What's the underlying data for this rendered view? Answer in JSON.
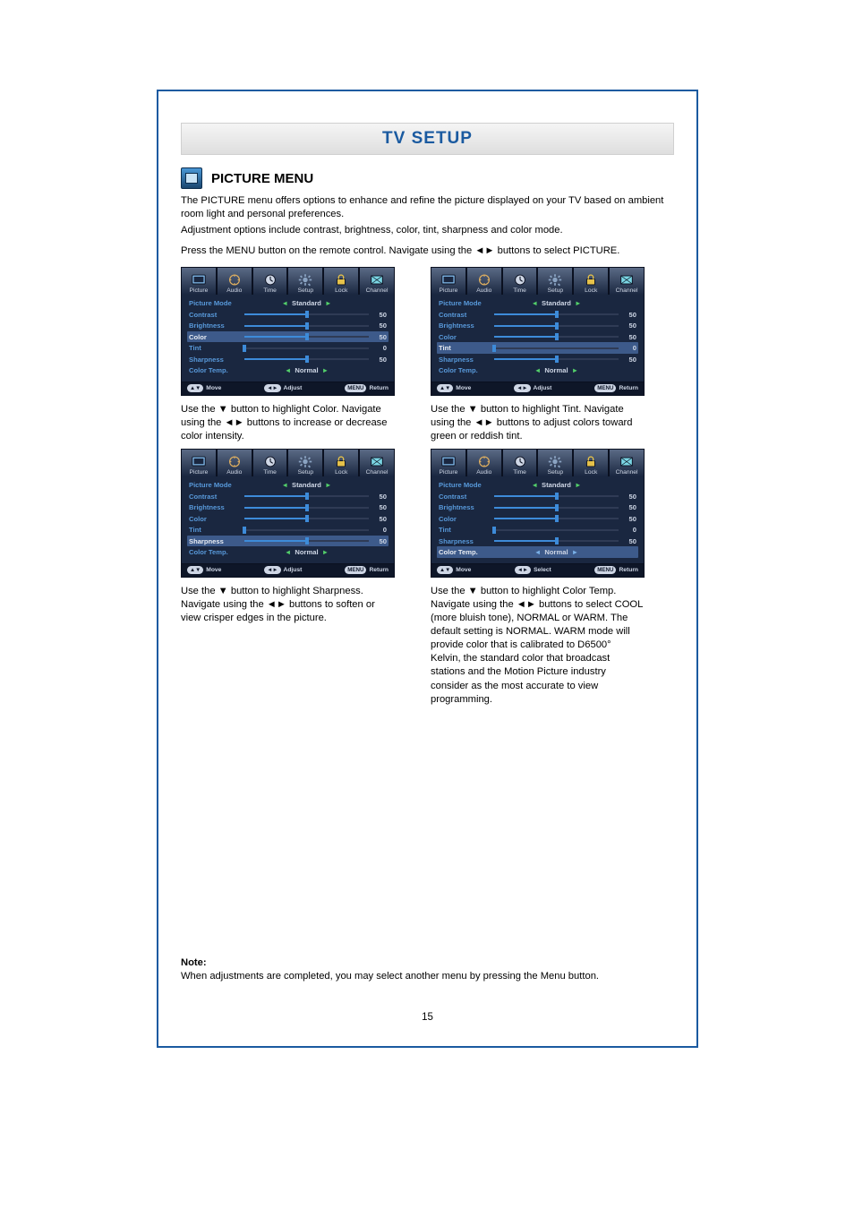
{
  "page_title": "TV SETUP",
  "section": {
    "heading": "PICTURE MENU",
    "intro_lines": [
      "The PICTURE menu offers options to enhance and refine the picture displayed on your TV based on ambient room light and personal preferences.",
      "Adjustment options include contrast, brightness, color, tint, sharpness and color mode.",
      "Press the MENU button on the remote control. Navigate using the ◄► buttons to select PICTURE."
    ]
  },
  "osd_common": {
    "tabs": [
      "Picture",
      "Audio",
      "Time",
      "Setup",
      "Lock",
      "Channel"
    ],
    "rows": [
      {
        "key": "Picture Mode",
        "type": "picker",
        "text": "Standard"
      },
      {
        "key": "Contrast",
        "type": "slider",
        "value": 50,
        "max": 100
      },
      {
        "key": "Brightness",
        "type": "slider",
        "value": 50,
        "max": 100
      },
      {
        "key": "Color",
        "type": "slider",
        "value": 50,
        "max": 100
      },
      {
        "key": "Tint",
        "type": "slider",
        "value": 0,
        "max": 100
      },
      {
        "key": "Sharpness",
        "type": "slider",
        "value": 50,
        "max": 100
      },
      {
        "key": "Color Temp.",
        "type": "picker",
        "text": "Normal"
      }
    ],
    "footer": {
      "move": "Move",
      "adjust": "Adjust",
      "select": "Select",
      "return": "Return",
      "menu_badge": "MENU",
      "lr_badge": "◄►",
      "ud_badge": "▲▼"
    }
  },
  "panels": [
    {
      "highlight_index": 3,
      "foot_center": "Adjust",
      "caption": "Use the ▼ button to highlight Color. Navigate using the ◄► buttons to increase or decrease color intensity."
    },
    {
      "highlight_index": 4,
      "foot_center": "Adjust",
      "caption": "Use the ▼ button to highlight Tint. Navigate using the ◄► buttons to adjust colors toward green or reddish tint."
    },
    {
      "highlight_index": 5,
      "foot_center": "Adjust",
      "caption": "Use the ▼ button to highlight Sharpness. Navigate using the ◄► buttons to soften or view crisper edges in the picture."
    },
    {
      "highlight_index": 6,
      "foot_center": "Select",
      "caption": "Use the ▼ button to highlight Color Temp. Navigate using the ◄► buttons to select COOL (more bluish tone), NORMAL or WARM. The default setting is NORMAL. WARM mode will provide color that is calibrated to D6500° Kelvin, the standard color that broadcast stations and the Motion Picture industry consider as the most accurate to view programming."
    }
  ],
  "note": {
    "head": "Note:",
    "body": "When adjustments are completed, you may select another menu by pressing the Menu button."
  },
  "page_number": "15",
  "osd_colors": {
    "background": "#1a2740",
    "tab_bg_top": "#5a6a85",
    "row_selected": "#3d5a8a",
    "label_color": "#5899da",
    "slider_fill": "#3d8bd9",
    "arrow_color": "#53d06a"
  },
  "tab_icon_colors": {
    "picture": "#7fb7e8",
    "audio": "#e0b060",
    "time": "#cfd7e6",
    "setup": "#8aa3c2",
    "lock": "#e6c24a",
    "channel": "#7bd6e4"
  }
}
